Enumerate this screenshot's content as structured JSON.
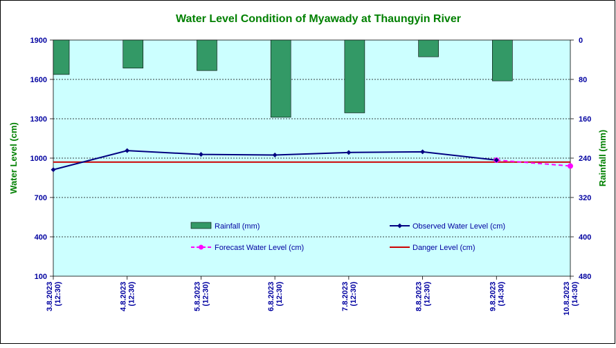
{
  "colors": {
    "title": "#008000",
    "axis_label": "#008000",
    "tick_text": "#0000a0",
    "plot_bg": "#ccffff",
    "rain_bar": "#339966",
    "observed": "#000080",
    "forecast": "#ff00ff",
    "danger": "#cc0000",
    "legend_text": "#0000a0"
  },
  "chart_data": {
    "type": "bar+line",
    "title": "Water Level Condition of  Myawady at Thaungyin River",
    "ylabel": "Water Level (cm)",
    "y2label": "Rainfall (mm)",
    "ylim": [
      100,
      1900
    ],
    "yticks": [
      "1900",
      "1600",
      "1300",
      "1000",
      "700",
      "400",
      "100"
    ],
    "y2lim": [
      0,
      480
    ],
    "y2ticks": [
      "0",
      "80",
      "160",
      "240",
      "320",
      "400",
      "480"
    ],
    "y2_inverted": true,
    "grid": "horizontal dotted",
    "categories": [
      [
        "3.8.2023",
        "(12:30)"
      ],
      [
        "4.8.2023",
        "(12:30)"
      ],
      [
        "5.8.2023",
        "(12:30)"
      ],
      [
        "6.8.2023",
        "(12:30)"
      ],
      [
        "7.8.2023",
        "(12:30)"
      ],
      [
        "8.8.2023",
        "(12:30)"
      ],
      [
        "9.8.2023",
        "(14:30)"
      ],
      [
        "10.8.2023",
        "(14:30)"
      ]
    ],
    "rainfall": [
      70,
      57,
      62,
      157,
      148,
      34,
      83
    ],
    "observed": [
      912,
      1057,
      1028,
      1024,
      1043,
      1048,
      985
    ],
    "forecast": [
      {
        "index": 6,
        "value": 985
      },
      {
        "index": 7,
        "value": 940
      }
    ],
    "danger": 970,
    "legend": {
      "rainfall": "Rainfall (mm)",
      "observed": "Observed Water Level (cm)",
      "forecast": "Forecast Water Level (cm)",
      "danger": "Danger Level (cm)"
    }
  }
}
